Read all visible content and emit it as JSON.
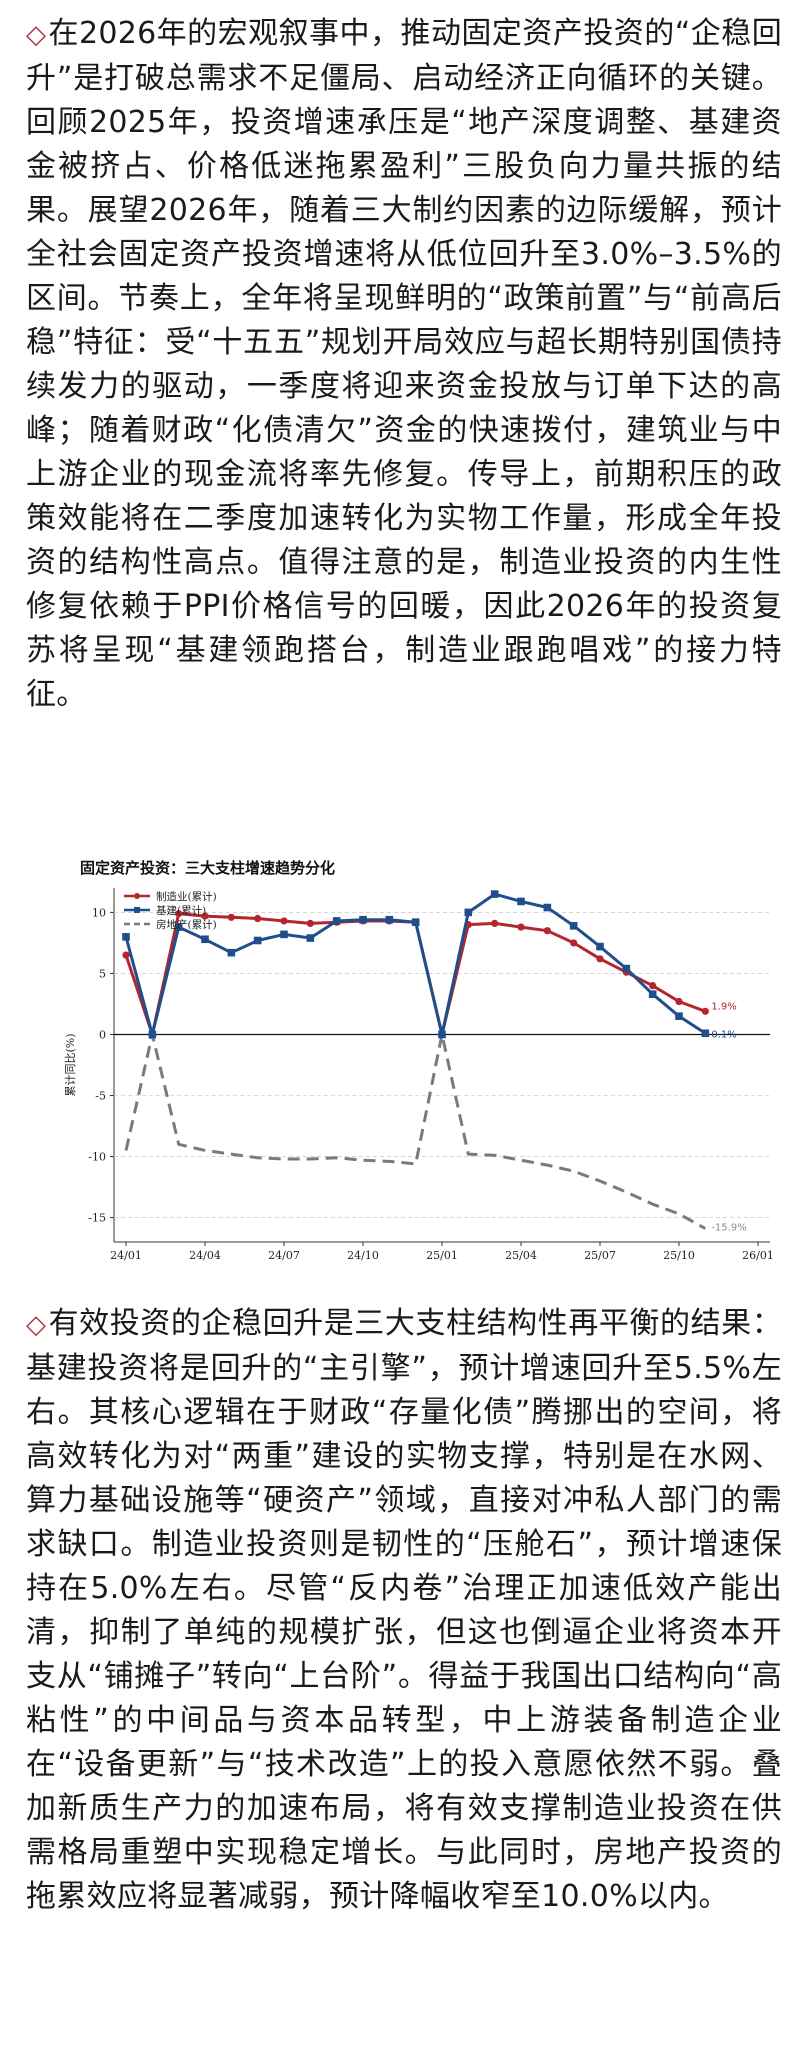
{
  "paragraph1": {
    "marker": "◇",
    "text": "在2026年的宏观叙事中，推动固定资产投资的“企稳回升”是打破总需求不足僵局、启动经济正向循环的关键。回顾2025年，投资增速承压是“地产深度调整、基建资金被挤占、价格低迷拖累盈利”三股负向力量共振的结果。展望2026年，随着三大制约因素的边际缓解，预计全社会固定资产投资增速将从低位回升至3.0%–3.5%的区间。节奏上，全年将呈现鲜明的“政策前置”与“前高后稳”特征：受“十五五”规划开局效应与超长期特别国债持续发力的驱动，一季度将迎来资金投放与订单下达的高峰；随着财政“化债清欠”资金的快速拨付，建筑业与中上游企业的现金流将率先修复。传导上，前期积压的政策效能将在二季度加速转化为实物工作量，形成全年投资的结构性高点。值得注意的是，制造业投资的内生性修复依赖于PPI价格信号的回暖，因此2026年的投资复苏将呈现“基建领跑搭台，制造业跟跑唱戏”的接力特征。"
  },
  "paragraph2": {
    "marker": "◇",
    "text": "有效投资的企稳回升是三大支柱结构性再平衡的结果：基建投资将是回升的“主引擎”，预计增速回升至5.5%左右。其核心逻辑在于财政“存量化债”腾挪出的空间，将高效转化为对“两重”建设的实物支撑，特别是在水网、算力基础设施等“硬资产”领域，直接对冲私人部门的需求缺口。制造业投资则是韧性的“压舱石”，预计增速保持在5.0%左右。尽管“反内卷”治理正加速低效产能出清，抑制了单纯的规模扩张，但这也倒逼企业将资本开支从“铺摊子”转向“上台阶”。得益于我国出口结构向“高粘性”的中间品与资本品转型，中上游装备制造企业在“设备更新”与“技术改造”上的投入意愿依然不弱。叠加新质生产力的加速布局，将有效支撑制造业投资在供需格局重塑中实现稳定增长。与此同时，房地产投资的拖累效应将显著减弱，预计降幅收窄至10.0%以内。"
  },
  "chart_data": {
    "type": "line",
    "title": "固定资产投资：三大支柱增速趋势分化",
    "ylabel": "累计同比(%)",
    "xlabel": "",
    "ylim": [
      -17,
      12
    ],
    "yticks": [
      10,
      5,
      0,
      -5,
      -10,
      -15
    ],
    "x": [
      "24/01",
      "24/02",
      "24/03",
      "24/04",
      "24/05",
      "24/06",
      "24/07",
      "24/08",
      "24/09",
      "24/10",
      "24/11",
      "24/12",
      "25/01",
      "25/02",
      "25/03",
      "25/04",
      "25/05",
      "25/06",
      "25/07",
      "25/08",
      "25/09",
      "25/10",
      "25/11",
      "25/12"
    ],
    "xticks": [
      "24/01",
      "24/04",
      "24/07",
      "24/10",
      "25/01",
      "25/04",
      "25/07",
      "25/10",
      "26/01"
    ],
    "grid": "horizontal",
    "legend": "top-left",
    "series": [
      {
        "name": "制造业(累计)",
        "color": "#b3262e",
        "marker": "circle",
        "dash": false,
        "values": [
          6.5,
          0,
          9.9,
          9.7,
          9.6,
          9.5,
          9.3,
          9.1,
          9.2,
          9.3,
          9.3,
          9.2,
          0,
          9.0,
          9.1,
          8.8,
          8.5,
          7.5,
          6.2,
          5.1,
          4.0,
          2.7,
          1.9,
          null
        ]
      },
      {
        "name": "基建(累计)",
        "color": "#1f4e8c",
        "marker": "square",
        "dash": false,
        "values": [
          8.0,
          0,
          8.8,
          7.8,
          6.7,
          7.7,
          8.2,
          7.9,
          9.3,
          9.4,
          9.4,
          9.2,
          0,
          10.0,
          11.5,
          10.9,
          10.4,
          8.9,
          7.2,
          5.4,
          3.3,
          1.5,
          0.1,
          null
        ]
      },
      {
        "name": "房地产(累计)",
        "color": "#7a7a7a",
        "marker": "none",
        "dash": true,
        "values": [
          -9.5,
          0,
          -9.0,
          -9.5,
          -9.8,
          -10.1,
          -10.2,
          -10.2,
          -10.1,
          -10.3,
          -10.4,
          -10.6,
          0,
          -9.8,
          -9.9,
          -10.3,
          -10.7,
          -11.2,
          -12.0,
          -12.9,
          -13.9,
          -14.7,
          -15.9,
          null
        ]
      }
    ],
    "end_labels": [
      {
        "text": "1.9%",
        "color": "#b3262e",
        "series": 0
      },
      {
        "text": "0.1%",
        "color": "#1f4e8c",
        "series": 1
      },
      {
        "text": "-15.9%",
        "color": "#8a8a8a",
        "series": 2
      }
    ]
  }
}
